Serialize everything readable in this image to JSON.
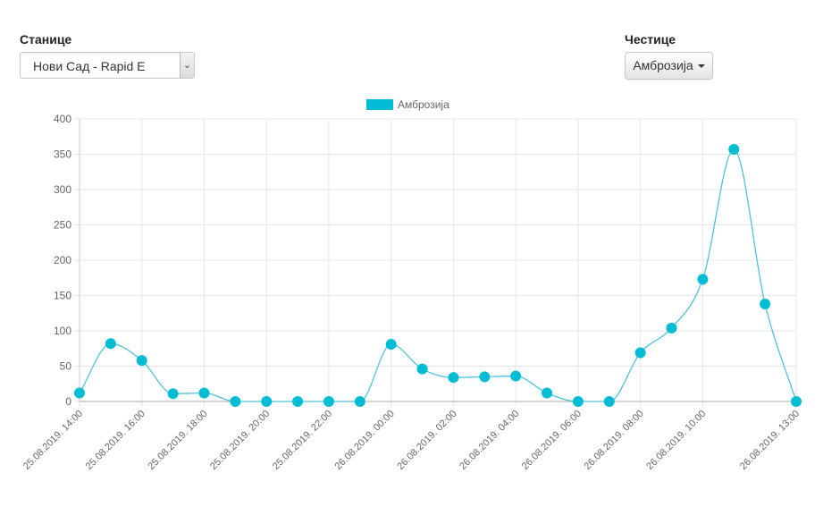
{
  "controls": {
    "stations_label": "Станице",
    "station_selected": "Нови Сад - Rapid E",
    "particles_label": "Честице",
    "particle_selected": "Амброзија"
  },
  "colors": {
    "series": "#00bcd4",
    "line": "#4fc3d6",
    "grid": "#e6e6e6",
    "text": "#666666"
  },
  "chart_data": {
    "type": "line",
    "title": "",
    "xlabel": "",
    "ylabel": "",
    "ylim": [
      0,
      400
    ],
    "yticks": [
      0,
      50,
      100,
      150,
      200,
      250,
      300,
      350,
      400
    ],
    "legend_position": "top-center",
    "x": [
      "25.08.2019. 14:00",
      "25.08.2019. 15:00",
      "25.08.2019. 16:00",
      "25.08.2019. 17:00",
      "25.08.2019. 18:00",
      "25.08.2019. 19:00",
      "25.08.2019. 20:00",
      "25.08.2019. 21:00",
      "25.08.2019. 22:00",
      "25.08.2019. 23:00",
      "26.08.2019. 00:00",
      "26.08.2019. 01:00",
      "26.08.2019. 02:00",
      "26.08.2019. 03:00",
      "26.08.2019. 04:00",
      "26.08.2019. 05:00",
      "26.08.2019. 06:00",
      "26.08.2019. 07:00",
      "26.08.2019. 08:00",
      "26.08.2019. 09:00",
      "26.08.2019. 10:00",
      "26.08.2019. 11:00",
      "26.08.2019. 12:00",
      "26.08.2019. 13:00"
    ],
    "x_tick_labels": [
      "25.08.2019. 14:00",
      "",
      "25.08.2019. 16:00",
      "",
      "25.08.2019. 18:00",
      "",
      "25.08.2019. 20:00",
      "",
      "25.08.2019. 22:00",
      "",
      "26.08.2019. 00:00",
      "",
      "26.08.2019. 02:00",
      "",
      "26.08.2019. 04:00",
      "",
      "26.08.2019. 06:00",
      "",
      "26.08.2019. 08:00",
      "",
      "26.08.2019. 10:00",
      "",
      "",
      "26.08.2019. 13:00"
    ],
    "series": [
      {
        "name": "Амброзија",
        "values": [
          12,
          82,
          58,
          11,
          12,
          0,
          0,
          0,
          0,
          0,
          81,
          46,
          34,
          35,
          36,
          12,
          0,
          0,
          69,
          104,
          173,
          357,
          138,
          0
        ]
      }
    ]
  }
}
